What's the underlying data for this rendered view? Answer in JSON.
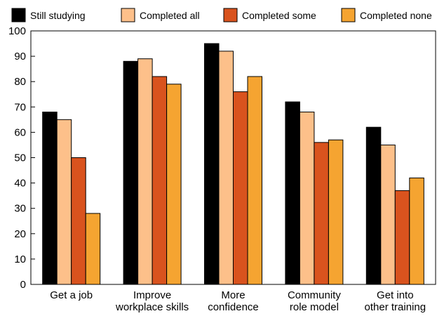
{
  "chart_data": {
    "type": "bar",
    "title": "",
    "xlabel": "",
    "ylabel": "",
    "ylim": [
      0,
      100
    ],
    "yticks": [
      0,
      10,
      20,
      30,
      40,
      50,
      60,
      70,
      80,
      90,
      100
    ],
    "grid": false,
    "legend_position": "top",
    "categories": [
      [
        "Get a job"
      ],
      [
        "Improve",
        "workplace skills"
      ],
      [
        "More",
        "confidence"
      ],
      [
        "Community",
        "role model"
      ],
      [
        "Get into",
        "other training"
      ]
    ],
    "series": [
      {
        "name": "Still studying",
        "color": "#000000",
        "values": [
          68,
          88,
          95,
          72,
          62
        ]
      },
      {
        "name": "Completed all",
        "color": "#fdc08a",
        "values": [
          65,
          89,
          92,
          68,
          55
        ]
      },
      {
        "name": "Completed some",
        "color": "#d9531e",
        "values": [
          50,
          82,
          76,
          56,
          37
        ]
      },
      {
        "name": "Completed none",
        "color": "#f5a431",
        "values": [
          28,
          79,
          82,
          57,
          42
        ]
      }
    ]
  }
}
